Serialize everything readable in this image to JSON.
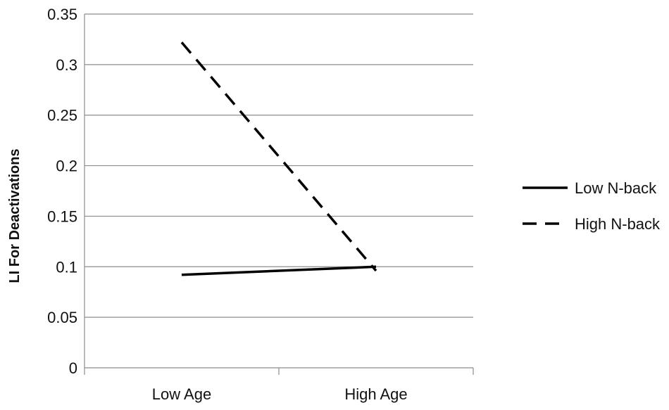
{
  "chart_data": {
    "type": "line",
    "title": "",
    "xlabel": "",
    "ylabel": "LI For Deactivations",
    "categories": [
      "Low Age",
      "High Age"
    ],
    "ylim": [
      0,
      0.35
    ],
    "yticks": [
      "0",
      "0.05",
      "0.1",
      "0.15",
      "0.2",
      "0.25",
      "0.3",
      "0.35"
    ],
    "grid": "horizontal",
    "legend_position": "right",
    "series": [
      {
        "name": "Low N-back",
        "values": [
          0.092,
          0.1
        ],
        "style": "solid",
        "color": "#000000"
      },
      {
        "name": "High N-back",
        "values": [
          0.322,
          0.096
        ],
        "style": "dashed",
        "color": "#000000"
      }
    ]
  }
}
